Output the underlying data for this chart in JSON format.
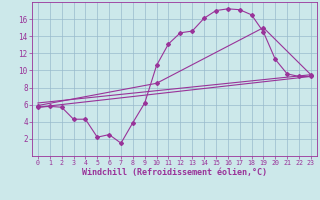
{
  "background_color": "#cce8ea",
  "line_color": "#993399",
  "grid_color": "#99bbcc",
  "xlabel": "Windchill (Refroidissement éolien,°C)",
  "xlim": [
    -0.5,
    23.5
  ],
  "ylim": [
    0,
    18
  ],
  "xticks": [
    0,
    1,
    2,
    3,
    4,
    5,
    6,
    7,
    8,
    9,
    10,
    11,
    12,
    13,
    14,
    15,
    16,
    17,
    18,
    19,
    20,
    21,
    22,
    23
  ],
  "yticks": [
    2,
    4,
    6,
    8,
    10,
    12,
    14,
    16
  ],
  "line1_x": [
    0,
    1,
    2,
    3,
    4,
    5,
    6,
    7,
    8,
    9,
    10,
    11,
    12,
    13,
    14,
    15,
    16,
    17,
    18,
    19,
    20,
    21,
    22,
    23
  ],
  "line1_y": [
    5.7,
    5.8,
    5.7,
    4.3,
    4.3,
    2.2,
    2.5,
    1.5,
    3.9,
    6.2,
    10.6,
    13.1,
    14.4,
    14.6,
    16.1,
    17.0,
    17.2,
    17.1,
    16.5,
    14.5,
    11.3,
    9.6,
    9.3,
    9.3
  ],
  "line2_x": [
    0,
    23
  ],
  "line2_y": [
    5.7,
    9.3
  ],
  "line3_x": [
    0,
    10,
    19,
    23
  ],
  "line3_y": [
    5.9,
    8.5,
    15.0,
    9.5
  ],
  "line4_x": [
    0,
    23
  ],
  "line4_y": [
    6.2,
    9.5
  ]
}
